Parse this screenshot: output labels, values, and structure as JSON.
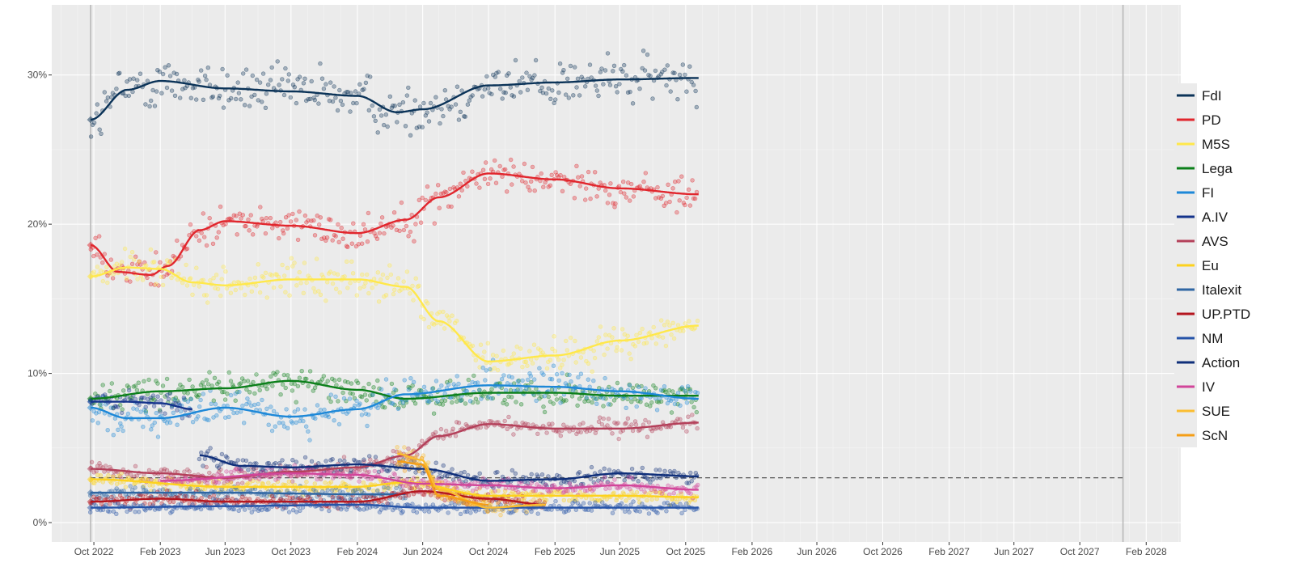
{
  "chart_data": {
    "type": "scatter",
    "title": "",
    "xlabel": "",
    "ylabel": "",
    "x_ticks": [
      "Oct 2022",
      "Feb 2023",
      "Jun 2023",
      "Oct 2023",
      "Feb 2024",
      "Jun 2024",
      "Oct 2024",
      "Feb 2025",
      "Jun 2025",
      "Oct 2025",
      "Feb 2026",
      "Jun 2026",
      "Oct 2026",
      "Feb 2027",
      "Jun 2027",
      "Oct 2027",
      "Feb 2028"
    ],
    "y_ticks": [
      "0%",
      "10%",
      "20%",
      "30%"
    ],
    "xlim": [
      "2022-07-15",
      "2028-04-05"
    ],
    "ylim": [
      -1.3,
      34.7
    ],
    "election_dates": [
      "2022-09-25",
      "2027-12-20"
    ],
    "threshold": {
      "value": 3,
      "from": "2022-09-25",
      "to": "2027-12-20"
    },
    "grid": true,
    "legend_position": "right",
    "series": [
      {
        "name": "FdI",
        "color": "#0b3358",
        "spread": 1.2,
        "trend": [
          [
            "2022-09-25",
            27.0
          ],
          [
            "2022-12-01",
            29.0
          ],
          [
            "2023-02-01",
            29.6
          ],
          [
            "2023-06-01",
            29.1
          ],
          [
            "2023-10-01",
            28.9
          ],
          [
            "2024-02-01",
            28.6
          ],
          [
            "2024-04-15",
            27.5
          ],
          [
            "2024-06-01",
            27.7
          ],
          [
            "2024-10-01",
            29.3
          ],
          [
            "2025-02-01",
            29.5
          ],
          [
            "2025-06-01",
            29.7
          ],
          [
            "2025-10-25",
            29.8
          ]
        ]
      },
      {
        "name": "PD",
        "color": "#e1262d",
        "spread": 0.8,
        "trend": [
          [
            "2022-09-25",
            18.6
          ],
          [
            "2022-11-15",
            16.8
          ],
          [
            "2023-01-15",
            16.6
          ],
          [
            "2023-02-15",
            17.2
          ],
          [
            "2023-04-15",
            19.6
          ],
          [
            "2023-06-01",
            20.2
          ],
          [
            "2023-10-01",
            19.9
          ],
          [
            "2024-02-01",
            19.4
          ],
          [
            "2024-05-01",
            20.3
          ],
          [
            "2024-07-01",
            21.8
          ],
          [
            "2024-10-01",
            23.4
          ],
          [
            "2025-02-01",
            23.0
          ],
          [
            "2025-06-01",
            22.4
          ],
          [
            "2025-10-25",
            22.0
          ]
        ]
      },
      {
        "name": "M5S",
        "color": "#ffe84a",
        "spread": 0.8,
        "trend": [
          [
            "2022-09-25",
            16.5
          ],
          [
            "2022-12-01",
            17.1
          ],
          [
            "2023-02-01",
            17.0
          ],
          [
            "2023-04-01",
            16.1
          ],
          [
            "2023-06-01",
            15.9
          ],
          [
            "2023-10-01",
            16.3
          ],
          [
            "2024-02-01",
            16.3
          ],
          [
            "2024-05-01",
            15.8
          ],
          [
            "2024-07-01",
            13.5
          ],
          [
            "2024-10-01",
            10.8
          ],
          [
            "2025-02-01",
            11.2
          ],
          [
            "2025-06-01",
            12.2
          ],
          [
            "2025-10-25",
            13.2
          ]
        ]
      },
      {
        "name": "Lega",
        "color": "#0b7f1a",
        "spread": 0.7,
        "trend": [
          [
            "2022-09-25",
            8.3
          ],
          [
            "2023-02-01",
            8.8
          ],
          [
            "2023-06-01",
            9.0
          ],
          [
            "2023-10-01",
            9.5
          ],
          [
            "2024-02-01",
            8.9
          ],
          [
            "2024-05-01",
            8.3
          ],
          [
            "2024-10-01",
            8.7
          ],
          [
            "2025-02-01",
            8.7
          ],
          [
            "2025-06-01",
            8.5
          ],
          [
            "2025-10-25",
            8.5
          ]
        ]
      },
      {
        "name": "FI",
        "color": "#1d88d8",
        "spread": 0.8,
        "trend": [
          [
            "2022-09-25",
            7.7
          ],
          [
            "2022-12-01",
            7.0
          ],
          [
            "2023-02-01",
            7.0
          ],
          [
            "2023-06-01",
            7.7
          ],
          [
            "2023-10-01",
            7.1
          ],
          [
            "2024-02-01",
            7.6
          ],
          [
            "2024-05-01",
            8.6
          ],
          [
            "2024-10-01",
            9.2
          ],
          [
            "2025-02-01",
            9.1
          ],
          [
            "2025-06-01",
            8.8
          ],
          [
            "2025-10-25",
            8.3
          ]
        ]
      },
      {
        "name": "A.IV",
        "color": "#14338b",
        "spread": 0.5,
        "trend": [
          [
            "2022-09-25",
            8.1
          ],
          [
            "2022-12-01",
            8.1
          ],
          [
            "2023-02-01",
            8.0
          ],
          [
            "2023-04-01",
            7.6
          ]
        ]
      },
      {
        "name": "AVS",
        "color": "#b4405a",
        "spread": 0.4,
        "trend": [
          [
            "2022-09-25",
            3.6
          ],
          [
            "2023-02-01",
            3.3
          ],
          [
            "2023-06-01",
            3.0
          ],
          [
            "2023-10-01",
            3.4
          ],
          [
            "2024-02-01",
            3.7
          ],
          [
            "2024-05-01",
            4.5
          ],
          [
            "2024-07-01",
            5.8
          ],
          [
            "2024-10-01",
            6.6
          ],
          [
            "2025-02-01",
            6.3
          ],
          [
            "2025-06-01",
            6.3
          ],
          [
            "2025-10-25",
            6.7
          ]
        ]
      },
      {
        "name": "Eu",
        "color": "#fdd21d",
        "spread": 0.3,
        "trend": [
          [
            "2022-09-25",
            2.9
          ],
          [
            "2023-06-01",
            2.4
          ],
          [
            "2024-02-01",
            2.4
          ],
          [
            "2024-05-01",
            2.7
          ],
          [
            "2024-10-01",
            1.8
          ],
          [
            "2025-06-01",
            1.8
          ],
          [
            "2025-10-25",
            1.7
          ]
        ]
      },
      {
        "name": "Italexit",
        "color": "#2f66a3",
        "spread": 0.3,
        "trend": [
          [
            "2022-09-25",
            2.0
          ],
          [
            "2023-06-01",
            2.0
          ],
          [
            "2024-02-01",
            1.9
          ],
          [
            "2024-04-30",
            1.9
          ]
        ]
      },
      {
        "name": "UP.PTD",
        "color": "#b5161f",
        "spread": 0.3,
        "trend": [
          [
            "2022-09-25",
            1.4
          ],
          [
            "2023-02-01",
            1.6
          ],
          [
            "2023-06-01",
            1.4
          ],
          [
            "2024-02-01",
            1.4
          ],
          [
            "2024-06-01",
            2.1
          ],
          [
            "2024-10-01",
            1.6
          ],
          [
            "2025-01-15",
            1.2
          ]
        ]
      },
      {
        "name": "NM",
        "color": "#2553a8",
        "spread": 0.3,
        "trend": [
          [
            "2022-09-25",
            1.0
          ],
          [
            "2023-06-01",
            1.1
          ],
          [
            "2024-02-01",
            1.2
          ],
          [
            "2024-06-01",
            1.0
          ],
          [
            "2025-06-01",
            1.0
          ],
          [
            "2025-10-25",
            1.0
          ]
        ]
      },
      {
        "name": "Action",
        "color": "#0f2f7a",
        "spread": 0.4,
        "trend": [
          [
            "2023-04-15",
            4.5
          ],
          [
            "2023-07-01",
            3.8
          ],
          [
            "2023-10-01",
            3.7
          ],
          [
            "2024-02-01",
            3.9
          ],
          [
            "2024-06-01",
            3.6
          ],
          [
            "2024-10-01",
            2.8
          ],
          [
            "2025-02-01",
            2.9
          ],
          [
            "2025-06-01",
            3.3
          ],
          [
            "2025-10-25",
            3.1
          ]
        ]
      },
      {
        "name": "IV",
        "color": "#d2459a",
        "spread": 0.3,
        "trend": [
          [
            "2023-02-01",
            2.8
          ],
          [
            "2023-10-01",
            3.3
          ],
          [
            "2024-02-01",
            3.2
          ],
          [
            "2024-06-01",
            2.6
          ],
          [
            "2024-10-01",
            2.5
          ],
          [
            "2025-02-01",
            2.3
          ],
          [
            "2025-06-01",
            2.5
          ],
          [
            "2025-10-25",
            2.2
          ]
        ]
      },
      {
        "name": "SUE",
        "color": "#fbbd30",
        "spread": 0.4,
        "trend": [
          [
            "2024-04-15",
            4.6
          ],
          [
            "2024-05-30",
            4.2
          ],
          [
            "2024-07-01",
            2.2
          ],
          [
            "2024-10-01",
            1.0
          ],
          [
            "2025-01-15",
            1.2
          ]
        ]
      },
      {
        "name": "ScN",
        "color": "#f59e16",
        "spread": 0.4,
        "trend": [
          [
            "2024-04-15",
            4.1
          ],
          [
            "2024-05-30",
            3.9
          ],
          [
            "2024-07-01",
            1.8
          ],
          [
            "2024-10-01",
            1.2
          ]
        ]
      }
    ]
  }
}
